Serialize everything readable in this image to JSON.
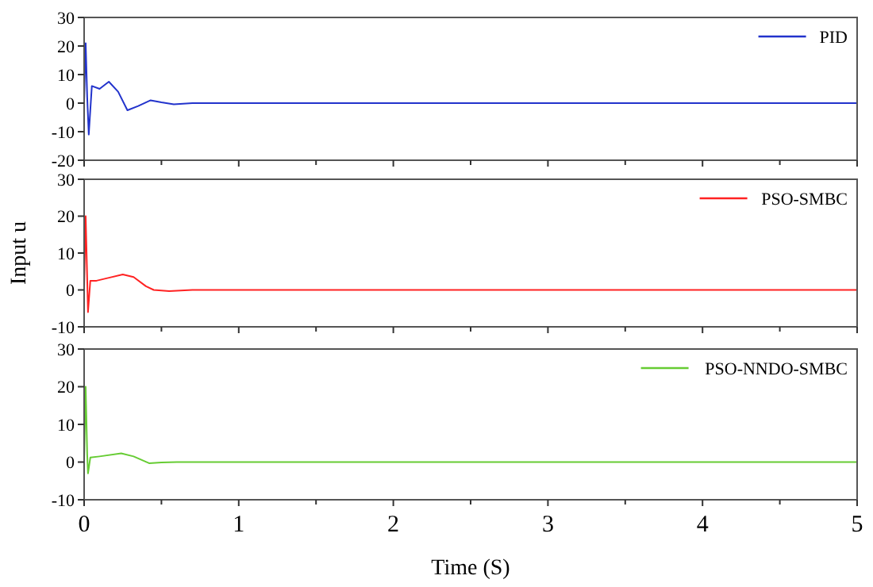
{
  "chart_data": [
    {
      "type": "line",
      "x": [
        0,
        0.01,
        0.02,
        0.03,
        0.05,
        0.1,
        0.16,
        0.22,
        0.28,
        0.35,
        0.43,
        0.5,
        0.58,
        0.7,
        1,
        2,
        3,
        4,
        5
      ],
      "series": [
        {
          "name": "PID",
          "color": "#2233cc",
          "values": [
            0,
            21,
            2,
            -11,
            6,
            5,
            7.5,
            4,
            -2.5,
            -1,
            1,
            0.3,
            -0.4,
            0,
            0,
            0,
            0,
            0,
            0
          ]
        }
      ],
      "xlim": [
        0,
        5
      ],
      "xticks": [
        0,
        {
          "value": 0.5,
          "label": null
        },
        1,
        {
          "value": 1.5,
          "label": null
        },
        2,
        {
          "value": 2.5,
          "label": null
        },
        3,
        {
          "value": 3.5,
          "label": null
        },
        4,
        {
          "value": 4.5,
          "label": null
        },
        5
      ],
      "ylim": [
        -20,
        30
      ],
      "yticks": [
        -20,
        -10,
        0,
        10,
        20,
        30
      ],
      "tick_labels": "y",
      "legend": "top right"
    },
    {
      "type": "line",
      "x": [
        0,
        0.01,
        0.02,
        0.025,
        0.04,
        0.08,
        0.15,
        0.25,
        0.32,
        0.4,
        0.45,
        0.55,
        0.7,
        1,
        2,
        3,
        4,
        5
      ],
      "series": [
        {
          "name": "PSO-SMBC",
          "color": "#ff2222",
          "values": [
            0,
            20,
            3,
            -6,
            2.5,
            2.5,
            3.2,
            4.2,
            3.5,
            1,
            0,
            -0.3,
            0,
            0,
            0,
            0,
            0,
            0
          ]
        }
      ],
      "ylabel": "Input u",
      "xlim": [
        0,
        5
      ],
      "xticks": [
        0,
        {
          "value": 0.5,
          "label": null
        },
        1,
        {
          "value": 1.5,
          "label": null
        },
        2,
        {
          "value": 2.5,
          "label": null
        },
        3,
        {
          "value": 3.5,
          "label": null
        },
        4,
        {
          "value": 4.5,
          "label": null
        },
        5
      ],
      "ylim": [
        -10,
        30
      ],
      "yticks": [
        -10,
        0,
        10,
        20,
        30
      ],
      "tick_labels": "y",
      "legend": "top right"
    },
    {
      "type": "line",
      "x": [
        0,
        0.01,
        0.02,
        0.025,
        0.04,
        0.1,
        0.24,
        0.32,
        0.42,
        0.5,
        0.6,
        1,
        2,
        3,
        4,
        5
      ],
      "series": [
        {
          "name": "PSO-NNDO-SMBC",
          "color": "#66cc33",
          "values": [
            0,
            20,
            2,
            -3,
            1.2,
            1.5,
            2.3,
            1.5,
            -0.3,
            -0.1,
            0,
            0,
            0,
            0,
            0,
            0
          ]
        }
      ],
      "xlabel": "Time (S)",
      "xlim": [
        0,
        5
      ],
      "xticks": [
        0,
        {
          "value": 0.5,
          "label": null
        },
        1,
        {
          "value": 1.5,
          "label": null
        },
        2,
        {
          "value": 2.5,
          "label": null
        },
        3,
        {
          "value": 3.5,
          "label": null
        },
        4,
        {
          "value": 4.5,
          "label": null
        },
        5
      ],
      "ylim": [
        -10,
        30
      ],
      "yticks": [
        -10,
        0,
        10,
        20,
        30
      ],
      "legend": "top right"
    }
  ]
}
